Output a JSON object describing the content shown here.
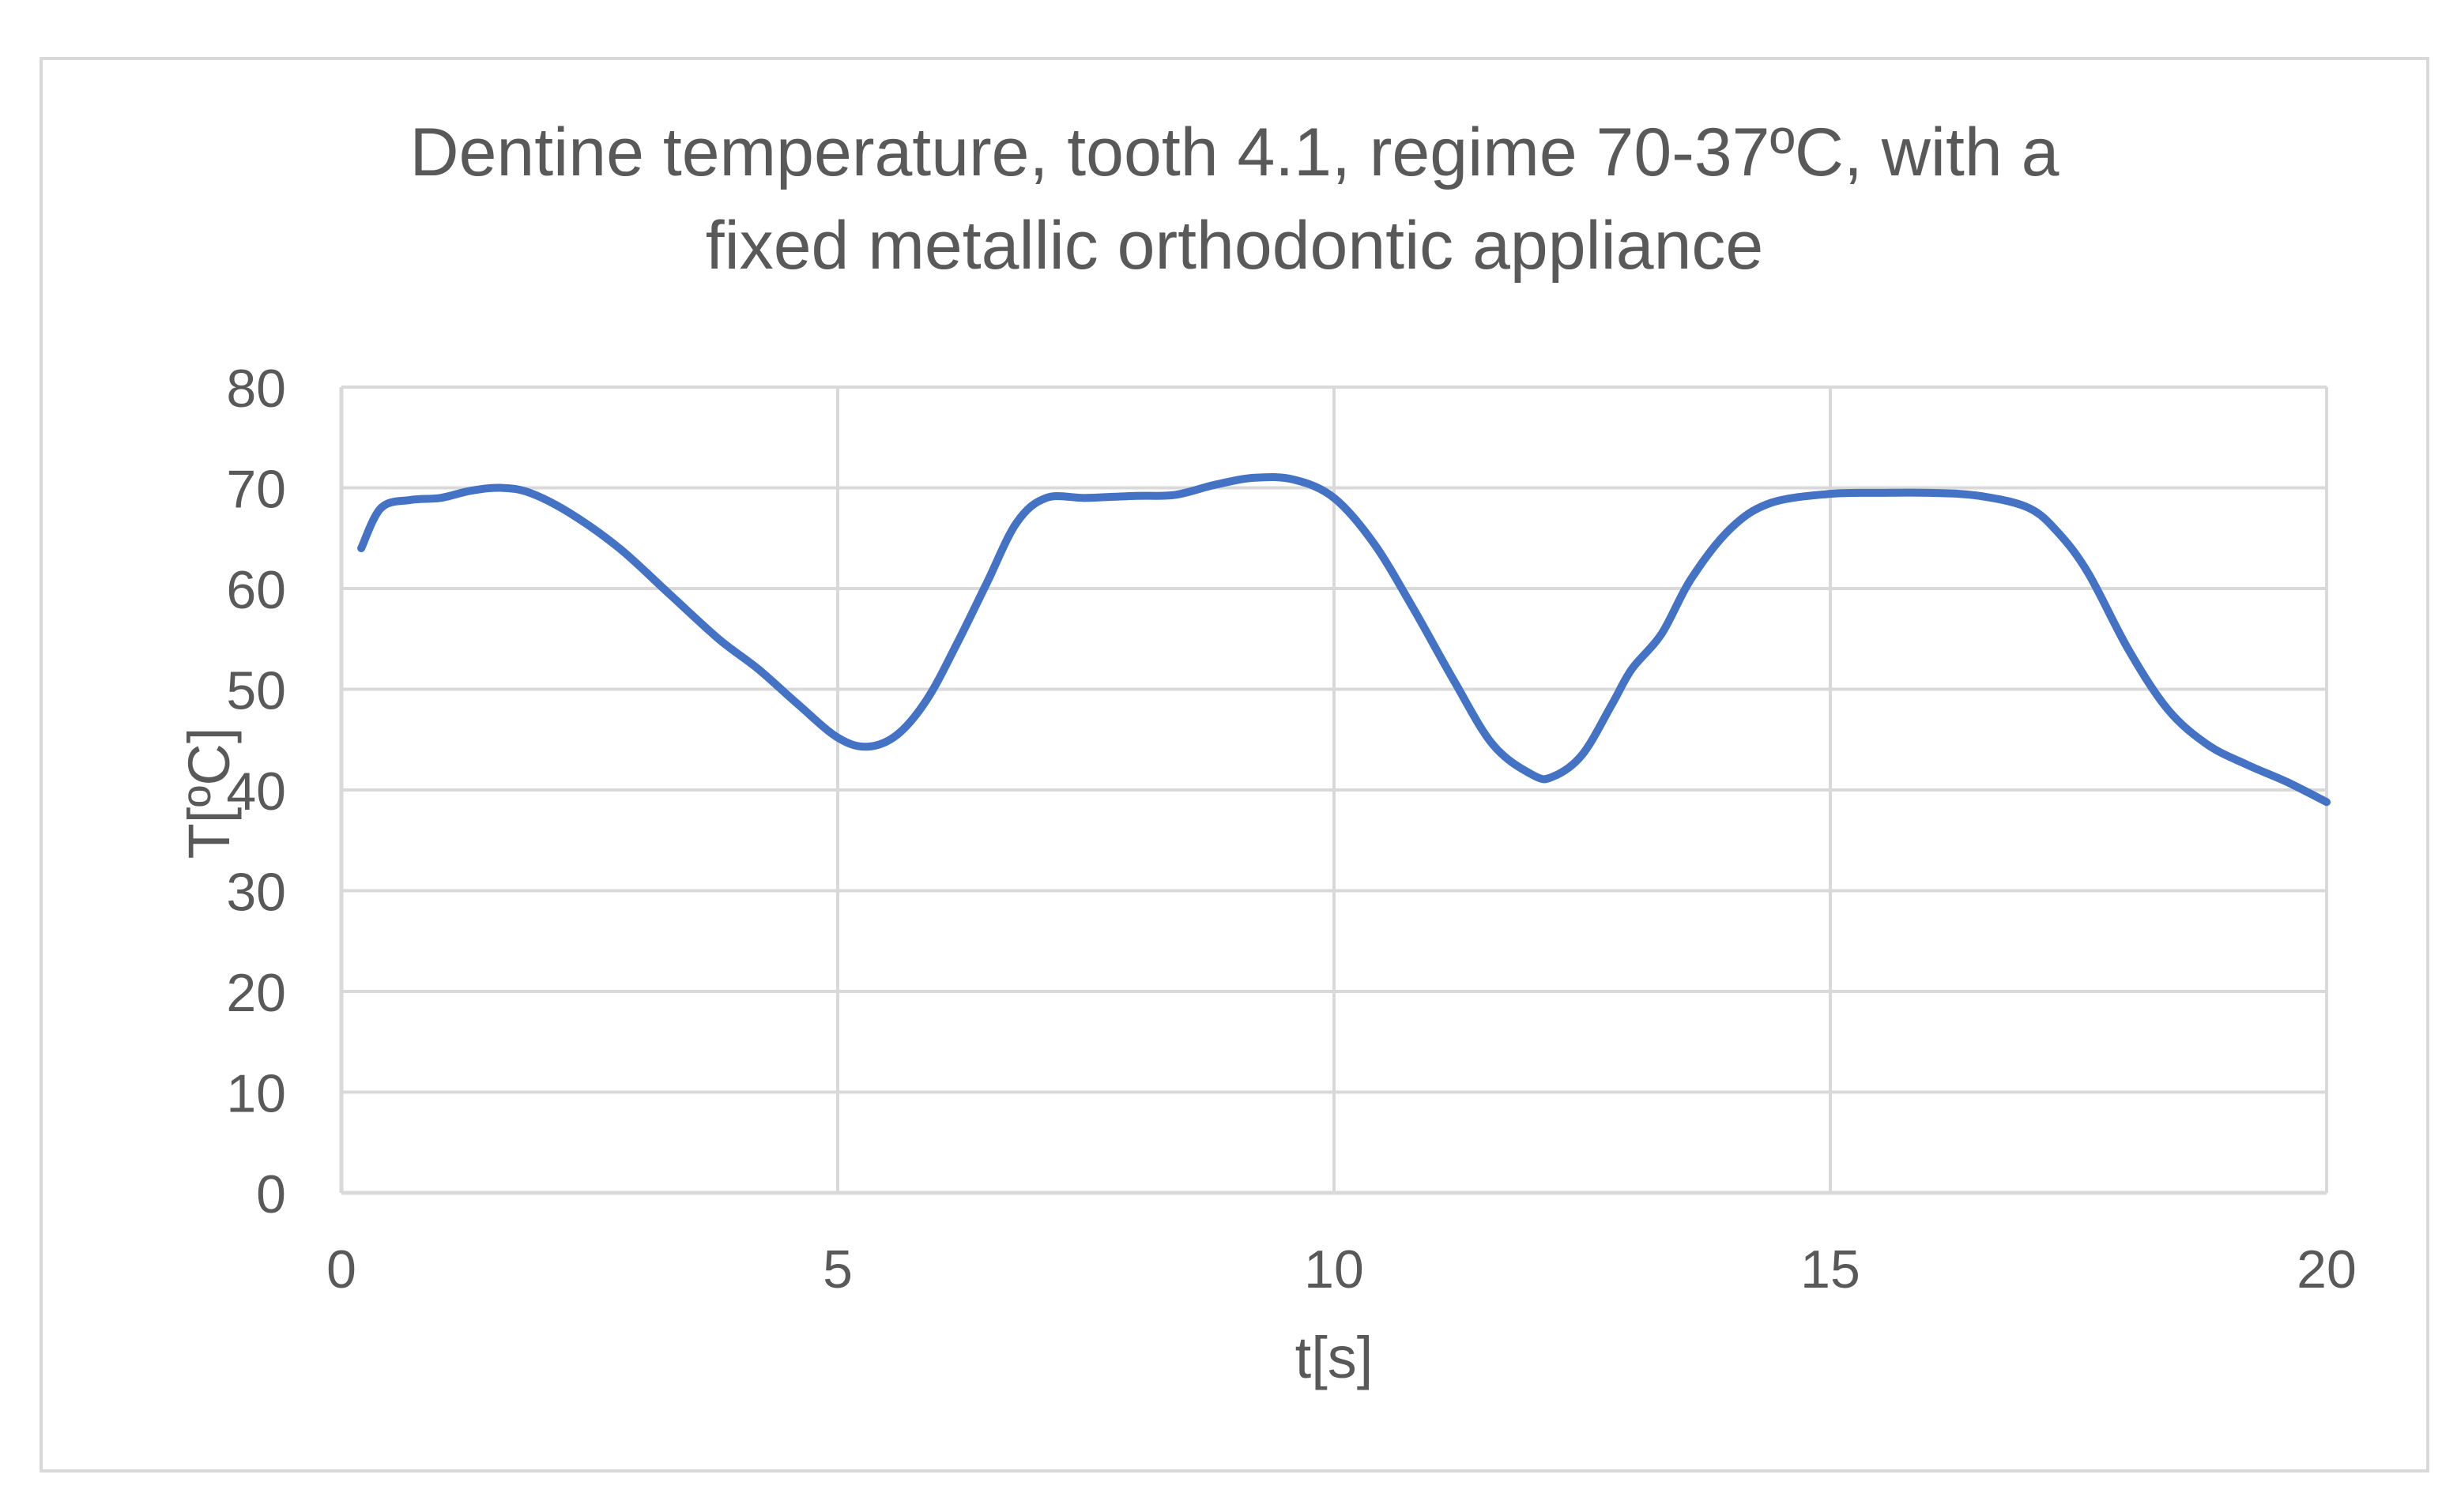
{
  "chart_data": {
    "type": "line",
    "title_line1": "Dentine temperature, tooth 4.1, regime 70-37ºC, with a",
    "title_line2": "fixed metallic orthodontic appliance",
    "xlabel": "t[s]",
    "ylabel": "T[ºC]",
    "xlim": [
      0,
      20
    ],
    "ylim": [
      0,
      80
    ],
    "x_ticks": [
      0,
      5,
      10,
      15,
      20
    ],
    "y_ticks": [
      0,
      10,
      20,
      30,
      40,
      50,
      60,
      70,
      80
    ],
    "grid": true,
    "legend": "none",
    "series": [
      {
        "color": "#4472c4",
        "x": [
          0.2,
          0.4,
          0.7,
          1.0,
          1.3,
          1.6,
          1.9,
          2.3,
          2.8,
          3.3,
          3.8,
          4.2,
          4.6,
          5.0,
          5.3,
          5.6,
          5.9,
          6.2,
          6.5,
          6.8,
          7.1,
          7.5,
          8.0,
          8.4,
          8.8,
          9.2,
          9.6,
          10.0,
          10.4,
          10.8,
          11.2,
          11.6,
          12.0,
          12.2,
          12.5,
          12.8,
          13.0,
          13.3,
          13.6,
          14.0,
          14.4,
          15.0,
          15.5,
          16.0,
          16.5,
          17.0,
          17.3,
          17.6,
          18.0,
          18.4,
          18.8,
          19.2,
          19.6,
          20.0
        ],
        "y": [
          64,
          68,
          68.8,
          69,
          69.7,
          70,
          69.5,
          67.5,
          64,
          59.5,
          55,
          52,
          48.5,
          45.2,
          44.3,
          45.5,
          49,
          54.5,
          60.5,
          66.5,
          69,
          69,
          69.2,
          69.3,
          70.3,
          71,
          70.8,
          69,
          64.5,
          58,
          51,
          44.5,
          41.5,
          41.3,
          43.5,
          48.5,
          52,
          55.5,
          61,
          66,
          68.5,
          69.4,
          69.5,
          69.5,
          69.2,
          68,
          65.5,
          61.5,
          54,
          48,
          44.5,
          42.5,
          40.8,
          38.8
        ]
      }
    ]
  }
}
